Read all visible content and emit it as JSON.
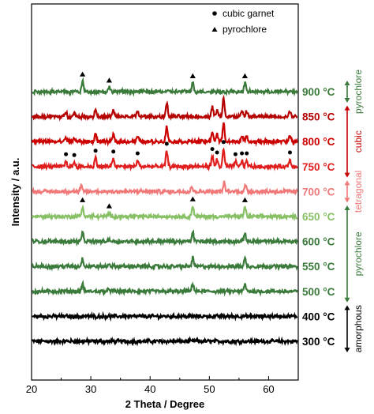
{
  "chart_data": {
    "type": "line",
    "xlabel": "2 Theta / Degree",
    "ylabel": "Intensity / a.u.",
    "xlim": [
      20,
      65
    ],
    "xticks": [
      "20",
      "30",
      "40",
      "50",
      "60"
    ],
    "yticks": "none",
    "grid": false,
    "legend": {
      "placement": "top-center",
      "entries": [
        {
          "marker": "circle",
          "label": "cubic garnet"
        },
        {
          "marker": "triangle",
          "label": "pyrochlore"
        }
      ]
    },
    "series": [
      {
        "label": "300 °C",
        "color": "#000000",
        "phase": "amorphous",
        "baseline": 0,
        "peaks": []
      },
      {
        "label": "400 °C",
        "color": "#000000",
        "phase": "amorphous",
        "baseline": 1,
        "peaks": []
      },
      {
        "label": "500 °C",
        "color": "#3a7a3a",
        "phase": "pyrochlore",
        "baseline": 2,
        "peaks": [
          [
            28.6,
            0.4
          ],
          [
            33.1,
            0.15
          ],
          [
            47.2,
            0.45
          ],
          [
            56.0,
            0.4
          ]
        ]
      },
      {
        "label": "550 °C",
        "color": "#3a7a3a",
        "phase": "pyrochlore",
        "baseline": 3,
        "peaks": [
          [
            28.6,
            0.45
          ],
          [
            33.1,
            0.15
          ],
          [
            47.2,
            0.5
          ],
          [
            56.0,
            0.45
          ]
        ]
      },
      {
        "label": "600 °C",
        "color": "#3a7a3a",
        "phase": "pyrochlore",
        "baseline": 4,
        "peaks": [
          [
            28.6,
            0.5
          ],
          [
            33.1,
            0.15
          ],
          [
            47.2,
            0.55
          ],
          [
            56.0,
            0.5
          ]
        ]
      },
      {
        "label": "650 °C",
        "color": "#88c066",
        "phase": "pyrochlore",
        "baseline": 5,
        "peaks": [
          [
            28.6,
            0.55
          ],
          [
            33.1,
            0.2
          ],
          [
            47.2,
            0.6
          ],
          [
            56.0,
            0.55
          ]
        ]
      },
      {
        "label": "700 °C",
        "color": "#f07878",
        "phase": "tetragonal",
        "baseline": 6,
        "peaks": [
          [
            28.4,
            0.3
          ],
          [
            47.0,
            0.3
          ],
          [
            52.5,
            0.5
          ],
          [
            56.1,
            0.35
          ]
        ]
      },
      {
        "label": "750 °C",
        "color": "#e01e1e",
        "phase": "cubic",
        "baseline": 7,
        "peaks": [
          [
            25.8,
            0.3
          ],
          [
            27.2,
            0.25
          ],
          [
            30.8,
            0.5
          ],
          [
            33.8,
            0.45
          ],
          [
            37.9,
            0.35
          ],
          [
            42.8,
            0.9
          ],
          [
            50.5,
            0.6
          ],
          [
            51.3,
            0.4
          ],
          [
            52.4,
            1.0
          ],
          [
            54.4,
            0.3
          ],
          [
            55.5,
            0.35
          ],
          [
            56.3,
            0.35
          ],
          [
            63.6,
            0.4
          ]
        ]
      },
      {
        "label": "800 °C",
        "color": "#cc0000",
        "phase": "cubic",
        "baseline": 8,
        "peaks": [
          [
            25.8,
            0.25
          ],
          [
            27.2,
            0.2
          ],
          [
            30.8,
            0.45
          ],
          [
            33.8,
            0.4
          ],
          [
            37.9,
            0.3
          ],
          [
            42.8,
            0.9
          ],
          [
            50.5,
            0.6
          ],
          [
            51.3,
            0.4
          ],
          [
            52.4,
            1.1
          ],
          [
            55.5,
            0.3
          ],
          [
            56.3,
            0.3
          ],
          [
            63.6,
            0.35
          ]
        ]
      },
      {
        "label": "850 °C",
        "color": "#b50000",
        "phase": "cubic",
        "baseline": 9,
        "peaks": [
          [
            25.8,
            0.25
          ],
          [
            27.2,
            0.2
          ],
          [
            30.8,
            0.4
          ],
          [
            33.8,
            0.35
          ],
          [
            37.9,
            0.3
          ],
          [
            42.8,
            0.8
          ],
          [
            50.5,
            0.6
          ],
          [
            51.3,
            0.35
          ],
          [
            52.4,
            1.1
          ],
          [
            55.5,
            0.3
          ],
          [
            56.3,
            0.3
          ],
          [
            63.6,
            0.3
          ]
        ]
      },
      {
        "label": "900 °C",
        "color": "#3a7a3a",
        "phase": "pyrochlore",
        "baseline": 10,
        "peaks": [
          [
            28.6,
            0.6
          ],
          [
            33.1,
            0.25
          ],
          [
            47.2,
            0.5
          ],
          [
            56.0,
            0.5
          ]
        ]
      }
    ],
    "phase_annotations": [
      {
        "label": "pyrochlore",
        "color": "#3a7a3a",
        "from": "900 °C",
        "to": "900 °C"
      },
      {
        "label": "cubic",
        "color": "#cc0000",
        "from": "850 °C",
        "to": "750 °C"
      },
      {
        "label": "tetragonal",
        "color": "#f07878",
        "from": "700 °C",
        "to": "700 °C"
      },
      {
        "label": "pyrochlore",
        "color": "#3a7a3a",
        "from": "650 °C",
        "to": "500 °C"
      },
      {
        "label": "amorphous",
        "color": "#000000",
        "from": "400 °C",
        "to": "300 °C"
      }
    ],
    "peak_markers": [
      {
        "series": "900 °C",
        "marker": "triangle",
        "x": [
          28.6,
          33.1,
          47.2,
          56.0
        ]
      },
      {
        "series": "750 °C",
        "marker": "circle",
        "x": [
          25.8,
          27.2,
          30.8,
          33.8,
          37.9,
          42.8,
          50.5,
          51.3,
          52.4,
          54.4,
          55.5,
          56.3,
          63.6
        ]
      },
      {
        "series": "650 °C",
        "marker": "triangle",
        "x": [
          28.6,
          33.1,
          47.2,
          56.0
        ]
      }
    ]
  }
}
